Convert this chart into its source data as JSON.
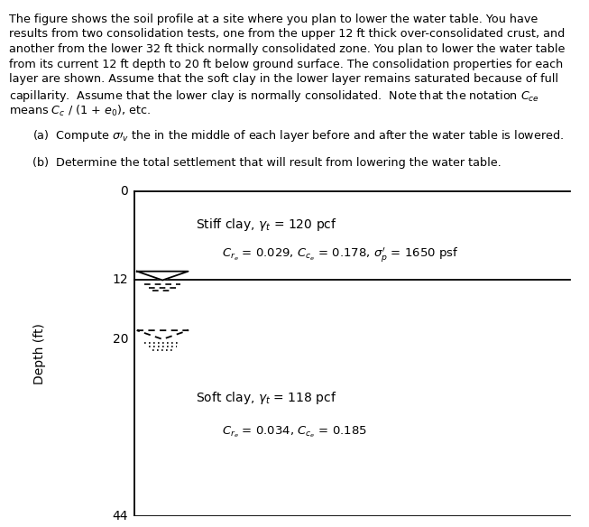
{
  "bg_color": "#ffffff",
  "text_color": "#000000",
  "line_color": "#000000",
  "fig_width": 6.53,
  "fig_height": 5.84,
  "para_lines": [
    "The figure shows the soil profile at a site where you plan to lower the water table. You have",
    "results from two consolidation tests, one from the upper 12 ft thick over-consolidated crust, and",
    "another from the lower 32 ft thick normally consolidated zone. You plan to lower the water table",
    "from its current 12 ft depth to 20 ft below ground surface. The consolidation properties for each",
    "layer are shown. Assume that the soft clay in the lower layer remains saturated because of full",
    "capillarity.  Assume that the lower clay is normally consolidated.  Note that the notation $C_{ce}$",
    "means $C_c$ / (1 + $e_0$), etc."
  ],
  "qa": "(a)  Compute $\\sigma\\prime_v$ the in the middle of each layer before and after the water table is lowered.",
  "qb": "(b)  Determine the total settlement that will result from lowering the water table.",
  "depth_label": "Depth (ft)",
  "stiff_clay_label": "Stiff clay, $\\gamma_t$ = 120 pcf",
  "stiff_clay_props": "$C_{r_e}$ = 0.029, $C_{c_e}$ = 0.178, $\\sigma^{\\prime}_p$ = 1650 psf",
  "soft_clay_label": "Soft clay, $\\gamma_t$ = 118 pcf",
  "soft_clay_props": "$C_{r_e}$ = 0.034, $C_{c_e}$ = 0.185",
  "font_size_para": 9.2,
  "font_size_diagram": 10.0,
  "font_size_props": 9.5
}
